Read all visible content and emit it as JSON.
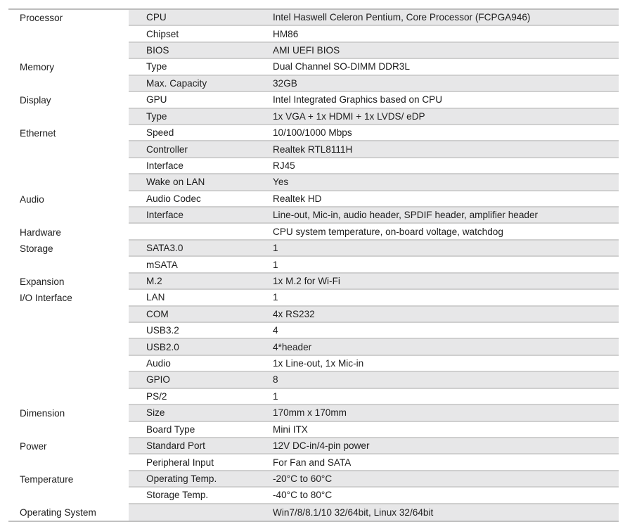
{
  "rows": [
    {
      "category": "Processor",
      "item": "CPU",
      "value": "Intel Haswell Celeron Pentium, Core Processor (FCPGA946)"
    },
    {
      "category": "",
      "item": "Chipset",
      "value": "HM86"
    },
    {
      "category": "",
      "item": "BIOS",
      "value": "AMI UEFI BIOS"
    },
    {
      "category": "Memory",
      "item": "Type",
      "value": "Dual Channel SO-DIMM DDR3L"
    },
    {
      "category": "",
      "item": "Max. Capacity",
      "value": "32GB"
    },
    {
      "category": "Display",
      "item": "GPU",
      "value": "Intel Integrated Graphics based on CPU"
    },
    {
      "category": "",
      "item": "Type",
      "value": "1x VGA + 1x HDMI + 1x LVDS/ eDP"
    },
    {
      "category": "Ethernet",
      "item": "Speed",
      "value": "10/100/1000 Mbps"
    },
    {
      "category": "",
      "item": "Controller",
      "value": "Realtek RTL8111H"
    },
    {
      "category": "",
      "item": "Interface",
      "value": "RJ45"
    },
    {
      "category": "",
      "item": "Wake on LAN",
      "value": "Yes"
    },
    {
      "category": "Audio",
      "item": "Audio Codec",
      "value": "Realtek HD"
    },
    {
      "category": "",
      "item": "Interface",
      "value": "Line-out, Mic-in, audio header, SPDIF header, amplifier header"
    },
    {
      "category": "Hardware",
      "item": "",
      "value": "CPU system temperature, on-board voltage, watchdog"
    },
    {
      "category": "Storage",
      "item": "SATA3.0",
      "value": "1"
    },
    {
      "category": "",
      "item": "mSATA",
      "value": "1"
    },
    {
      "category": "Expansion",
      "item": "M.2",
      "value": "1x M.2 for Wi-Fi"
    },
    {
      "category": "I/O Interface",
      "item": "LAN",
      "value": "1"
    },
    {
      "category": "",
      "item": "COM",
      "value": "4x RS232"
    },
    {
      "category": "",
      "item": "USB3.2",
      "value": "4"
    },
    {
      "category": "",
      "item": "USB2.0",
      "value": "4*header"
    },
    {
      "category": "",
      "item": "Audio",
      "value": "1x Line-out, 1x Mic-in"
    },
    {
      "category": "",
      "item": "GPIO",
      "value": "8"
    },
    {
      "category": "",
      "item": "PS/2",
      "value": "1"
    },
    {
      "category": "Dimension",
      "item": "Size",
      "value": "170mm x 170mm"
    },
    {
      "category": "",
      "item": "Board Type",
      "value": "Mini ITX"
    },
    {
      "category": "Power",
      "item": "Standard Port",
      "value": "12V DC-in/4-pin power"
    },
    {
      "category": "",
      "item": "Peripheral Input",
      "value": "For Fan and SATA"
    },
    {
      "category": "Temperature",
      "item": "Operating Temp.",
      "value": "-20°C to 60°C"
    },
    {
      "category": "",
      "item": "Storage Temp.",
      "value": "-40°C to 80°C"
    },
    {
      "category": "Operating System",
      "item": "",
      "value": "Win7/8/8.1/10 32/64bit, Linux 32/64bit"
    }
  ],
  "colors": {
    "row_shade": "#e7e7e8",
    "divider": "#cfcfcf"
  }
}
